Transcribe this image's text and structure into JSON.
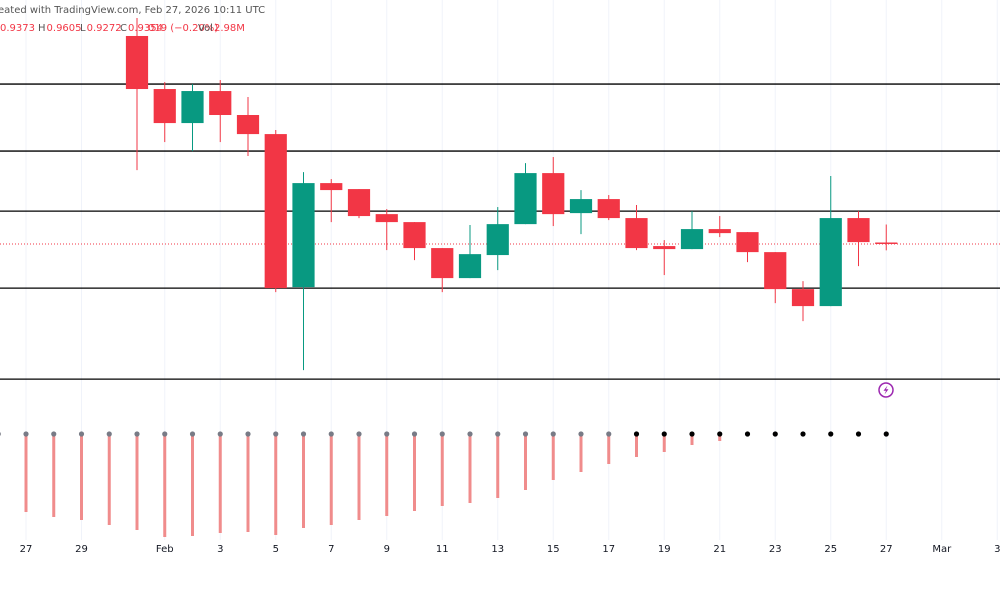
{
  "chart_data": [
    {
      "type": "candlestick",
      "attribution": "eated with TradingView.com, Feb 27, 2026 10:11 UTC",
      "ohlc_legend": [
        {
          "label": "",
          "value": "0.9373"
        },
        {
          "label": "H",
          "value": "0.9605"
        },
        {
          "label": "L",
          "value": "0.9272"
        },
        {
          "label": "C",
          "value": "0.9354"
        },
        {
          "label": "",
          "value": "019 (−0.20%)"
        },
        {
          "label": "Vol",
          "value": "2.98M"
        }
      ],
      "x": [
        "2026-01-31",
        "2026-02-01",
        "2026-02-02",
        "2026-02-03",
        "2026-02-04",
        "2026-02-05",
        "2026-02-06",
        "2026-02-07",
        "2026-02-08",
        "2026-02-09",
        "2026-02-10",
        "2026-02-11",
        "2026-02-12",
        "2026-02-13",
        "2026-02-14",
        "2026-02-15",
        "2026-02-16",
        "2026-02-17",
        "2026-02-18",
        "2026-02-19",
        "2026-02-20",
        "2026-02-21",
        "2026-02-22",
        "2026-02-23",
        "2026-02-24",
        "2026-02-25",
        "2026-02-26",
        "2026-02-27"
      ],
      "open": [
        1.2036,
        1.1352,
        1.0913,
        1.1326,
        1.1017,
        1.0771,
        0.8798,
        1.0139,
        1.0062,
        0.9739,
        0.9636,
        0.9301,
        0.8914,
        0.9211,
        0.961,
        1.0268,
        0.9752,
        0.9933,
        0.9688,
        0.9327,
        0.9288,
        0.9546,
        0.9507,
        0.9249,
        0.8772,
        0.8553,
        0.9688,
        0.9373
      ],
      "high": [
        1.2268,
        1.1442,
        1.1416,
        1.1468,
        1.1249,
        1.0823,
        1.0281,
        1.0191,
        1.0062,
        0.9804,
        0.9636,
        0.9301,
        0.9598,
        0.983,
        1.0397,
        1.0475,
        1.0049,
        0.9985,
        0.9856,
        0.9404,
        0.9778,
        0.9714,
        0.9507,
        0.9249,
        0.8875,
        1.023,
        0.9778,
        0.9605
      ],
      "low": [
        1.0307,
        1.0668,
        1.0552,
        1.0668,
        1.0488,
        0.8733,
        0.7727,
        0.9636,
        0.9688,
        0.9275,
        0.9146,
        0.8733,
        0.8914,
        0.9017,
        0.961,
        0.9585,
        0.9481,
        0.9662,
        0.9275,
        0.8953,
        0.9288,
        0.9443,
        0.912,
        0.8591,
        0.8359,
        0.8553,
        0.9069,
        0.9272
      ],
      "close": [
        1.1352,
        1.0913,
        1.1326,
        1.1017,
        1.0771,
        0.8785,
        1.0139,
        1.0049,
        0.9714,
        0.9636,
        0.9301,
        0.8914,
        0.9223,
        0.961,
        1.0268,
        0.9739,
        0.9933,
        0.9688,
        0.9301,
        0.9288,
        0.9546,
        0.9494,
        0.9249,
        0.8772,
        0.8553,
        0.9688,
        0.9378,
        0.9354
      ],
      "up_color": "#089981",
      "down_color": "#f23645",
      "levels": [
        1.1416,
        1.0552,
        0.9778,
        0.8785,
        0.7611
      ],
      "level_color": "#000000",
      "last_price_line_color": "#f23645",
      "ylim": [
        0.76,
        1.25
      ],
      "xlim": [
        "2026-01-26",
        "2026-03-04"
      ],
      "xticks": [
        {
          "value": "2026-01-27",
          "label": "27"
        },
        {
          "value": "2026-01-29",
          "label": "29"
        },
        {
          "value": "2026-02-01",
          "label": "Feb"
        },
        {
          "value": "2026-02-03",
          "label": "3"
        },
        {
          "value": "2026-02-05",
          "label": "5"
        },
        {
          "value": "2026-02-07",
          "label": "7"
        },
        {
          "value": "2026-02-09",
          "label": "9"
        },
        {
          "value": "2026-02-11",
          "label": "11"
        },
        {
          "value": "2026-02-13",
          "label": "13"
        },
        {
          "value": "2026-02-15",
          "label": "15"
        },
        {
          "value": "2026-02-17",
          "label": "17"
        },
        {
          "value": "2026-02-19",
          "label": "19"
        },
        {
          "value": "2026-02-21",
          "label": "21"
        },
        {
          "value": "2026-02-23",
          "label": "23"
        },
        {
          "value": "2026-02-25",
          "label": "25"
        },
        {
          "value": "2026-02-27",
          "label": "27"
        },
        {
          "value": "2026-03-01",
          "label": "Mar"
        },
        {
          "value": "2026-03-03",
          "label": "3"
        }
      ],
      "grid": true
    },
    {
      "type": "bar",
      "x": [
        "2026-01-26",
        "2026-01-27",
        "2026-01-28",
        "2026-01-29",
        "2026-01-30",
        "2026-01-31",
        "2026-02-01",
        "2026-02-02",
        "2026-02-03",
        "2026-02-04",
        "2026-02-05",
        "2026-02-06",
        "2026-02-07",
        "2026-02-08",
        "2026-02-09",
        "2026-02-10",
        "2026-02-11",
        "2026-02-12",
        "2026-02-13",
        "2026-02-14",
        "2026-02-15",
        "2026-02-16",
        "2026-02-17",
        "2026-02-18",
        "2026-02-19",
        "2026-02-20",
        "2026-02-21",
        "2026-02-22",
        "2026-02-23",
        "2026-02-24",
        "2026-02-25",
        "2026-02-26",
        "2026-02-27"
      ],
      "values": [
        null,
        -78,
        -83,
        -86,
        -91,
        -96,
        -103,
        -102,
        -99,
        -98,
        -101,
        -94,
        -91,
        -86,
        -82,
        -77,
        -72,
        -69,
        -64,
        -56,
        -46,
        -38,
        -30,
        -23,
        -18,
        -11,
        -7,
        null,
        null,
        null,
        null,
        null,
        null
      ],
      "color": "#f08c8c",
      "dot_colors": [
        "#787b86",
        "#787b86",
        "#787b86",
        "#787b86",
        "#787b86",
        "#787b86",
        "#787b86",
        "#787b86",
        "#787b86",
        "#787b86",
        "#787b86",
        "#787b86",
        "#787b86",
        "#787b86",
        "#787b86",
        "#787b86",
        "#787b86",
        "#787b86",
        "#787b86",
        "#787b86",
        "#787b86",
        "#787b86",
        "#787b86",
        "#000000",
        "#000000",
        "#000000",
        "#000000",
        "#000000",
        "#000000",
        "#000000",
        "#000000",
        "#000000",
        "#000000"
      ],
      "ylim": [
        -120,
        14
      ]
    }
  ]
}
